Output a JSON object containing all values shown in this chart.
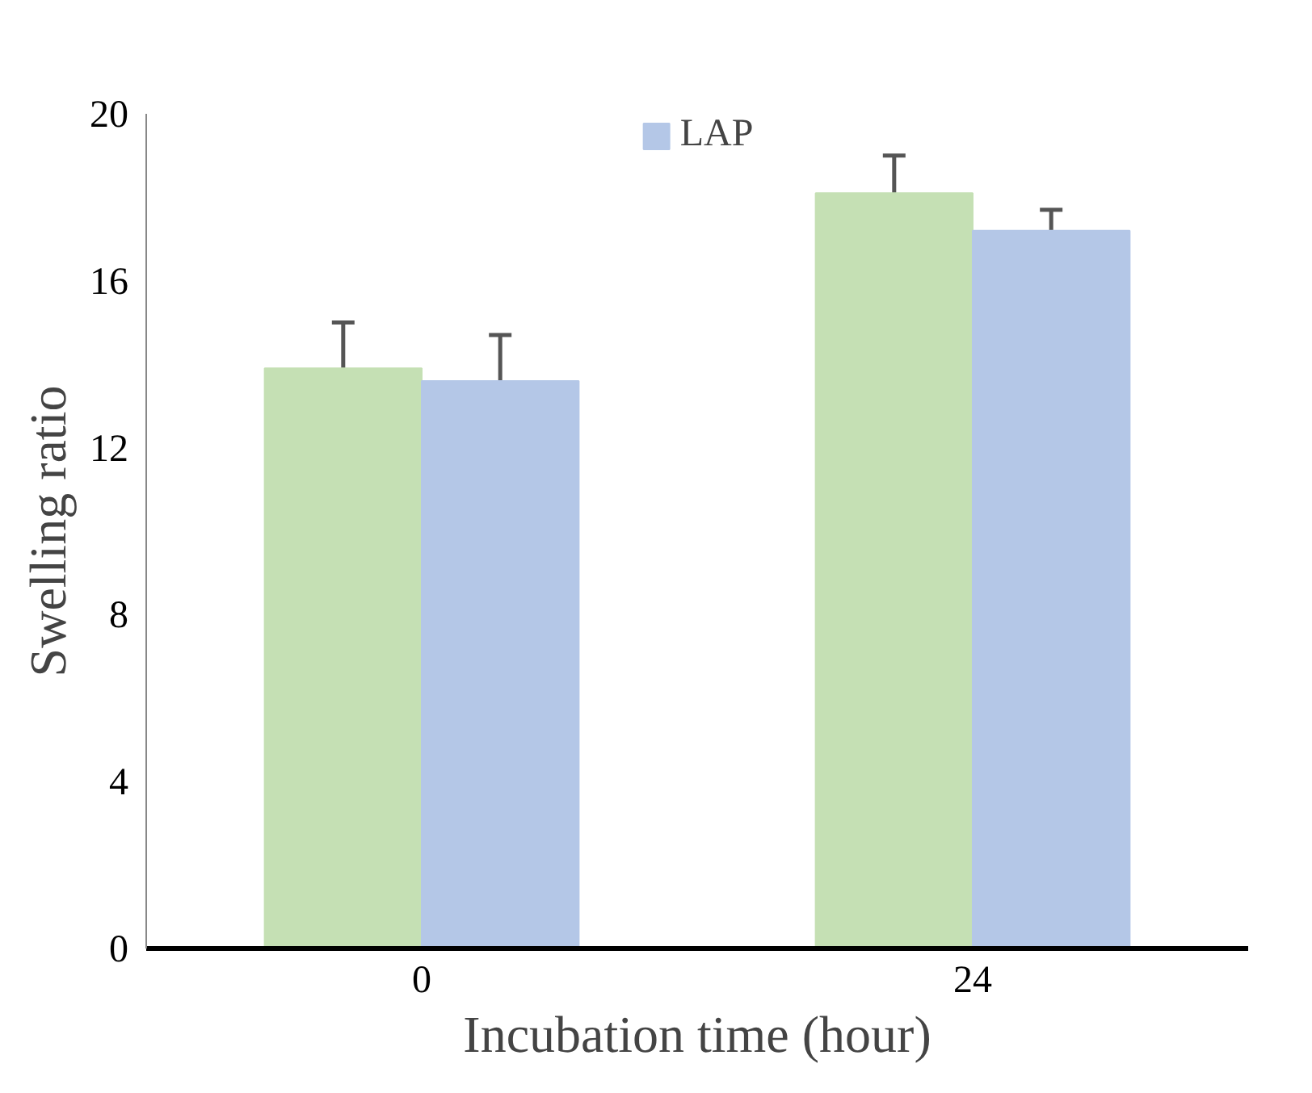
{
  "chart_data": {
    "type": "bar",
    "xlabel": "Incubation time (hour)",
    "ylabel": "Swelling ratio",
    "categories": [
      "0",
      "24"
    ],
    "series": [
      {
        "color": "#c5e0b4",
        "values": [
          13.9,
          18.1
        ],
        "errors": [
          1.1,
          0.9
        ]
      },
      {
        "name": "LAP",
        "color": "#b4c7e7",
        "values": [
          13.6,
          17.2
        ],
        "errors": [
          1.1,
          0.5
        ]
      }
    ],
    "ylim": [
      0,
      20
    ],
    "yticks": [
      0,
      4,
      8,
      12,
      16,
      20
    ],
    "grid": false,
    "legend": "top"
  }
}
